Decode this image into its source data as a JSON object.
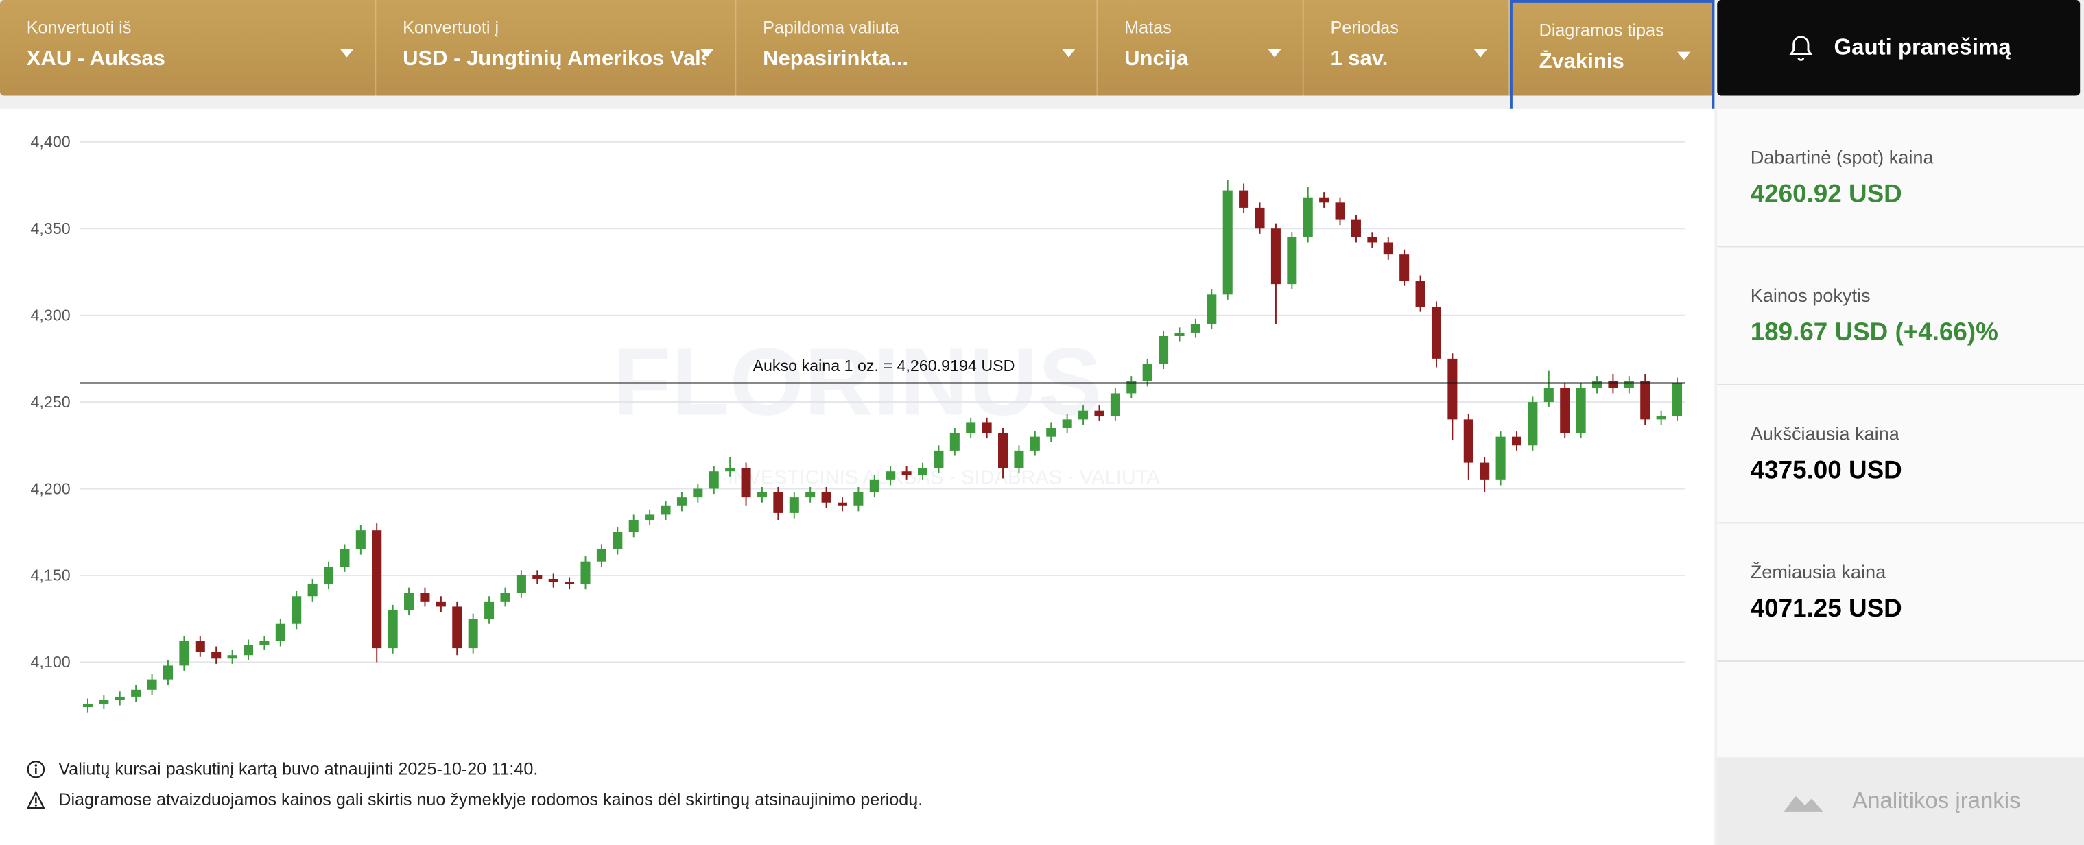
{
  "header": {
    "fields": [
      {
        "label": "Konvertuoti iš",
        "value": "XAU - Auksas"
      },
      {
        "label": "Konvertuoti į",
        "value": "USD - Jungtinių Amerikos Valst…"
      },
      {
        "label": "Papildoma valiuta",
        "value": "Nepasirinkta..."
      },
      {
        "label": "Matas",
        "value": "Uncija"
      },
      {
        "label": "Periodas",
        "value": "1 sav."
      },
      {
        "label": "Diagramos tipas",
        "value": "Žvakinis"
      }
    ],
    "button": "Gauti pranešimą"
  },
  "watermark": {
    "brand": "FLORINUS",
    "tagline": "INVESTICINIS AUKSAS · SIDABRAS · VALIUTA"
  },
  "chart_data": {
    "type": "candlestick",
    "up_color": "#3d9a3d",
    "down_color": "#8c1c1c",
    "grid": true,
    "ylim": [
      4068,
      4409
    ],
    "yticks": [
      {
        "value": 4100,
        "label": "4,100"
      },
      {
        "value": 4150,
        "label": "4,150"
      },
      {
        "value": 4200,
        "label": "4,200"
      },
      {
        "value": 4250,
        "label": "4,250"
      },
      {
        "value": 4300,
        "label": "4,300"
      },
      {
        "value": 4350,
        "label": "4,350"
      },
      {
        "value": 4400,
        "label": "4,400"
      }
    ],
    "reference_line": {
      "value": 4260.9194,
      "label": "Aukso kaina 1 oz. = 4,260.9194 USD"
    },
    "open": [
      4074,
      4076,
      4078,
      4080,
      4084,
      4090,
      4098,
      4112,
      4106,
      4102,
      4104,
      4110,
      4112,
      4122,
      4138,
      4145,
      4155,
      4165,
      4176,
      4108,
      4130,
      4140,
      4135,
      4132,
      4108,
      4125,
      4135,
      4140,
      4150,
      4148,
      4146,
      4145,
      4158,
      4165,
      4175,
      4182,
      4185,
      4190,
      4195,
      4200,
      4210,
      4212,
      4195,
      4198,
      4186,
      4195,
      4198,
      4192,
      4190,
      4198,
      4205,
      4210,
      4208,
      4212,
      4222,
      4232,
      4238,
      4232,
      4212,
      4222,
      4230,
      4235,
      4240,
      4245,
      4242,
      4255,
      4262,
      4272,
      4288,
      4290,
      4295,
      4312,
      4372,
      4362,
      4350,
      4318,
      4345,
      4368,
      4365,
      4355,
      4345,
      4342,
      4335,
      4320,
      4305,
      4275,
      4240,
      4215,
      4205,
      4230,
      4225,
      4250,
      4258,
      4232,
      4258,
      4262,
      4258,
      4262,
      4240,
      4242
    ],
    "high": [
      4079,
      4081,
      4083,
      4087,
      4093,
      4101,
      4115,
      4115,
      4109,
      4107,
      4113,
      4115,
      4125,
      4141,
      4148,
      4158,
      4168,
      4179,
      4180,
      4133,
      4143,
      4143,
      4138,
      4135,
      4128,
      4138,
      4143,
      4153,
      4153,
      4151,
      4149,
      4161,
      4168,
      4178,
      4185,
      4188,
      4193,
      4198,
      4203,
      4213,
      4218,
      4215,
      4201,
      4201,
      4198,
      4201,
      4201,
      4195,
      4201,
      4208,
      4213,
      4213,
      4215,
      4225,
      4235,
      4241,
      4241,
      4235,
      4225,
      4233,
      4238,
      4243,
      4248,
      4248,
      4258,
      4265,
      4275,
      4291,
      4293,
      4298,
      4315,
      4378,
      4376,
      4365,
      4353,
      4348,
      4374,
      4371,
      4368,
      4358,
      4348,
      4345,
      4338,
      4323,
      4308,
      4278,
      4243,
      4218,
      4233,
      4233,
      4253,
      4268,
      4261,
      4261,
      4265,
      4266,
      4265,
      4266,
      4245,
      4264
    ],
    "low": [
      4071,
      4073,
      4075,
      4077,
      4081,
      4087,
      4095,
      4103,
      4099,
      4099,
      4101,
      4107,
      4109,
      4119,
      4135,
      4142,
      4152,
      4162,
      4100,
      4105,
      4127,
      4132,
      4129,
      4104,
      4105,
      4122,
      4132,
      4137,
      4145,
      4143,
      4142,
      4142,
      4155,
      4162,
      4172,
      4179,
      4182,
      4187,
      4192,
      4197,
      4207,
      4190,
      4192,
      4182,
      4183,
      4192,
      4189,
      4187,
      4187,
      4195,
      4202,
      4205,
      4205,
      4209,
      4219,
      4229,
      4229,
      4206,
      4209,
      4219,
      4227,
      4232,
      4237,
      4239,
      4239,
      4252,
      4259,
      4269,
      4285,
      4287,
      4292,
      4309,
      4359,
      4347,
      4295,
      4315,
      4342,
      4362,
      4352,
      4342,
      4339,
      4332,
      4317,
      4302,
      4270,
      4228,
      4205,
      4198,
      4202,
      4222,
      4222,
      4247,
      4229,
      4229,
      4255,
      4255,
      4255,
      4237,
      4237,
      4239
    ],
    "close": [
      4076,
      4078,
      4080,
      4084,
      4090,
      4098,
      4112,
      4106,
      4102,
      4104,
      4110,
      4112,
      4122,
      4138,
      4145,
      4155,
      4165,
      4176,
      4108,
      4130,
      4140,
      4135,
      4132,
      4108,
      4125,
      4135,
      4140,
      4150,
      4148,
      4146,
      4145,
      4158,
      4165,
      4175,
      4182,
      4185,
      4190,
      4195,
      4200,
      4210,
      4212,
      4195,
      4198,
      4186,
      4195,
      4198,
      4192,
      4190,
      4198,
      4205,
      4210,
      4208,
      4212,
      4222,
      4232,
      4238,
      4232,
      4212,
      4222,
      4230,
      4235,
      4240,
      4245,
      4242,
      4255,
      4262,
      4272,
      4288,
      4290,
      4295,
      4312,
      4372,
      4362,
      4350,
      4318,
      4345,
      4368,
      4365,
      4355,
      4345,
      4342,
      4335,
      4320,
      4305,
      4275,
      4240,
      4215,
      4205,
      4230,
      4225,
      4250,
      4258,
      4232,
      4258,
      4262,
      4258,
      4262,
      4240,
      4242,
      4261
    ]
  },
  "stats": [
    {
      "label": "Dabartinė (spot) kaina",
      "value": "4260.92 USD"
    },
    {
      "label": "Kainos pokytis",
      "value": "189.67 USD (+4.66)%"
    },
    {
      "label": "Aukščiausia kaina",
      "value": "4375.00 USD"
    },
    {
      "label": "Žemiausia kaina",
      "value": "4071.25 USD"
    }
  ],
  "notes": [
    "Valiutų kursai paskutinį kartą buvo atnaujinti 2025-10-20 11:40.",
    "Diagramose atvaizduojamos kainos gali skirtis nuo žymeklyje rodomos kainos dėl skirtingų atsinaujinimo periodų."
  ],
  "analytics_link": "Analitikos įrankis"
}
